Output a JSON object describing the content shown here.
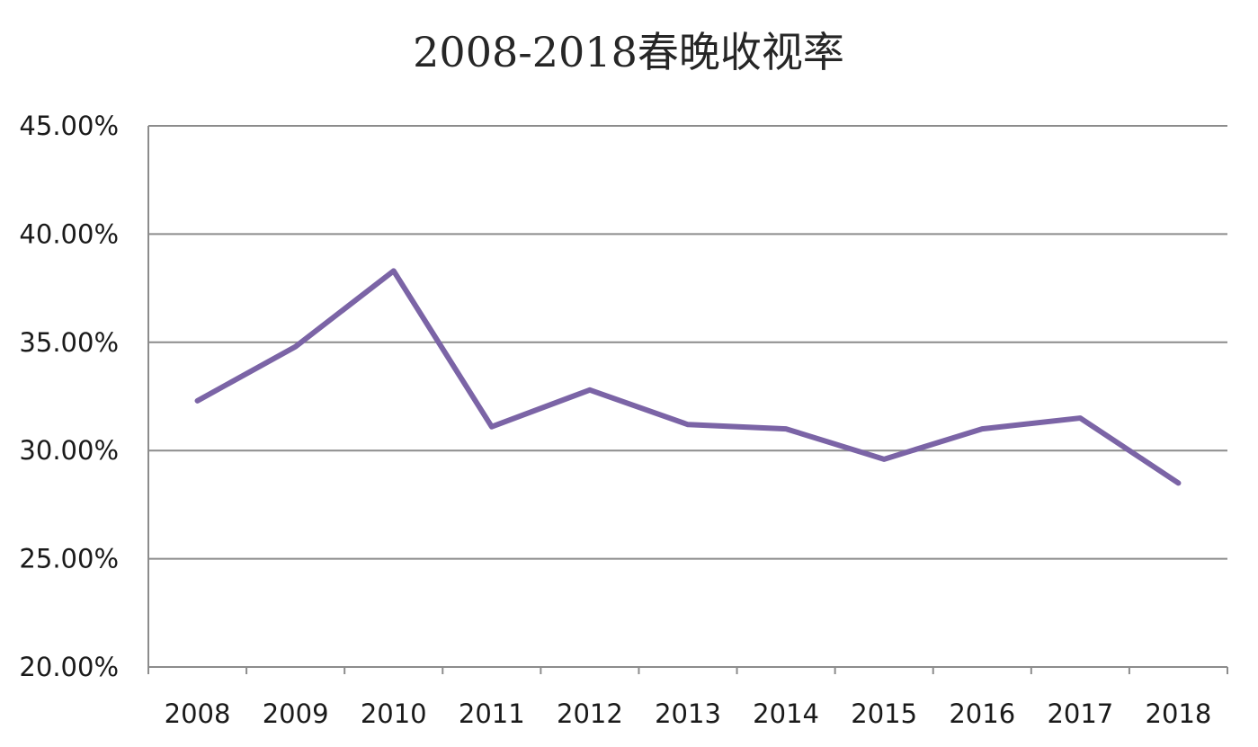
{
  "chart_data": {
    "type": "line",
    "title": "2008-2018春晚收视率",
    "xlabel": "",
    "ylabel": "",
    "categories": [
      "2008",
      "2009",
      "2010",
      "2011",
      "2012",
      "2013",
      "2014",
      "2015",
      "2016",
      "2017",
      "2018"
    ],
    "series": [
      {
        "values": [
          32.3,
          34.8,
          38.3,
          31.1,
          32.8,
          31.2,
          31.0,
          29.6,
          31.0,
          31.5,
          28.5
        ]
      }
    ],
    "ylim": [
      20,
      45
    ],
    "yticks": [
      20,
      25,
      30,
      35,
      40,
      45
    ],
    "ytick_labels": [
      "20.00%",
      "25.00%",
      "30.00%",
      "35.00%",
      "40.00%",
      "45.00%"
    ],
    "grid": true,
    "legend": "none",
    "colors": {
      "line": "#7b64a6",
      "grid": "#8c8c8c",
      "text": "#1a1a1a"
    }
  }
}
